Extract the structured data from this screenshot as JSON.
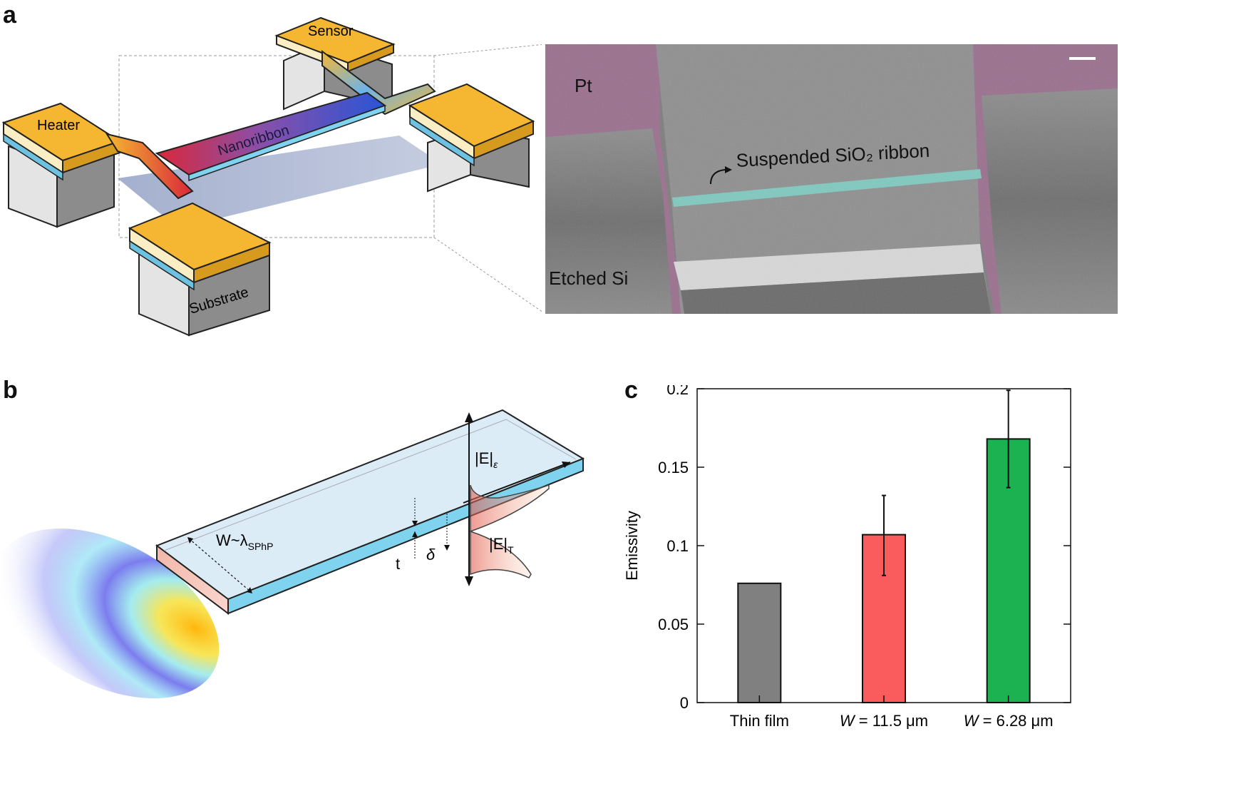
{
  "panels": {
    "a": "a",
    "b": "b",
    "c": "c"
  },
  "panel_a": {
    "device_labels": {
      "sensor": "Sensor",
      "heater": "Heater",
      "nanoribbon": "Nanoribbon",
      "substrate": "Substrate"
    },
    "sem_labels": {
      "pt": "Pt",
      "ribbon": "Suspended SiO₂ ribbon",
      "etched_si": "Etched Si"
    },
    "colors": {
      "pad": "#f5b731",
      "pt_overlay": "#9a6f8e",
      "ribbon_overlay": "#7fc9c0",
      "hot": "#d9283a",
      "cold": "#2a55d6"
    }
  },
  "panel_b": {
    "labels": {
      "width": "W~λ",
      "width_sub": "SPhP",
      "thickness": "t",
      "depth": "δ",
      "field_e": "|E|",
      "field_e_sub": "ε",
      "field_t": "|E|",
      "field_t_sub": "T"
    }
  },
  "chart_data": {
    "type": "bar",
    "categories": [
      "Thin film",
      "W = 11.5 μm",
      "W = 6.28 μm"
    ],
    "category_parts": [
      {
        "italic": "",
        "rest": "Thin film"
      },
      {
        "italic": "W",
        "rest": " = 11.5 μm"
      },
      {
        "italic": "W",
        "rest": " = 6.28 μm"
      }
    ],
    "values": [
      0.076,
      0.107,
      0.168
    ],
    "error_low": [
      null,
      0.081,
      0.137
    ],
    "error_high": [
      null,
      0.132,
      0.199
    ],
    "colors": [
      "#808080",
      "#fa5b5d",
      "#1db251"
    ],
    "ylabel": "Emissivity",
    "xlabel": "",
    "title": "",
    "ylim": [
      0,
      0.2
    ],
    "yticks": [
      0,
      0.05,
      0.1,
      0.15,
      0.2
    ],
    "ytick_labels": [
      "0",
      "0.05",
      "0.1",
      "0.15",
      "0.2"
    ],
    "grid": false,
    "legend": "none"
  }
}
